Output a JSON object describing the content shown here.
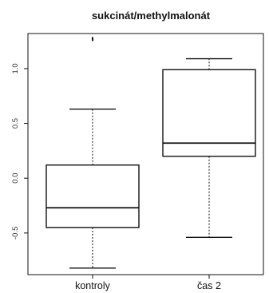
{
  "chart_data": {
    "type": "boxplot",
    "title": "sukcinát/methylmalonát",
    "xlabel": "",
    "ylabel": "",
    "ylim": [
      -0.88,
      1.32
    ],
    "yticks": [
      -0.5,
      0.0,
      0.5,
      1.0
    ],
    "ytick_labels": [
      "-0.5",
      "0.0",
      "0.5",
      "1.0"
    ],
    "grid": false,
    "categories": [
      "kontroly",
      "čas 2"
    ],
    "boxes": [
      {
        "category": "kontroly",
        "whisker_low": -0.82,
        "q1": -0.45,
        "median": -0.27,
        "q3": 0.12,
        "whisker_high": 0.63,
        "outliers": [
          1.27
        ]
      },
      {
        "category": "čas 2",
        "whisker_low": -0.54,
        "q1": 0.2,
        "median": 0.32,
        "q3": 0.99,
        "whisker_high": 1.09,
        "outliers": []
      }
    ],
    "colors": {
      "stroke": "#111111",
      "box_fill": "#ffffff"
    }
  }
}
